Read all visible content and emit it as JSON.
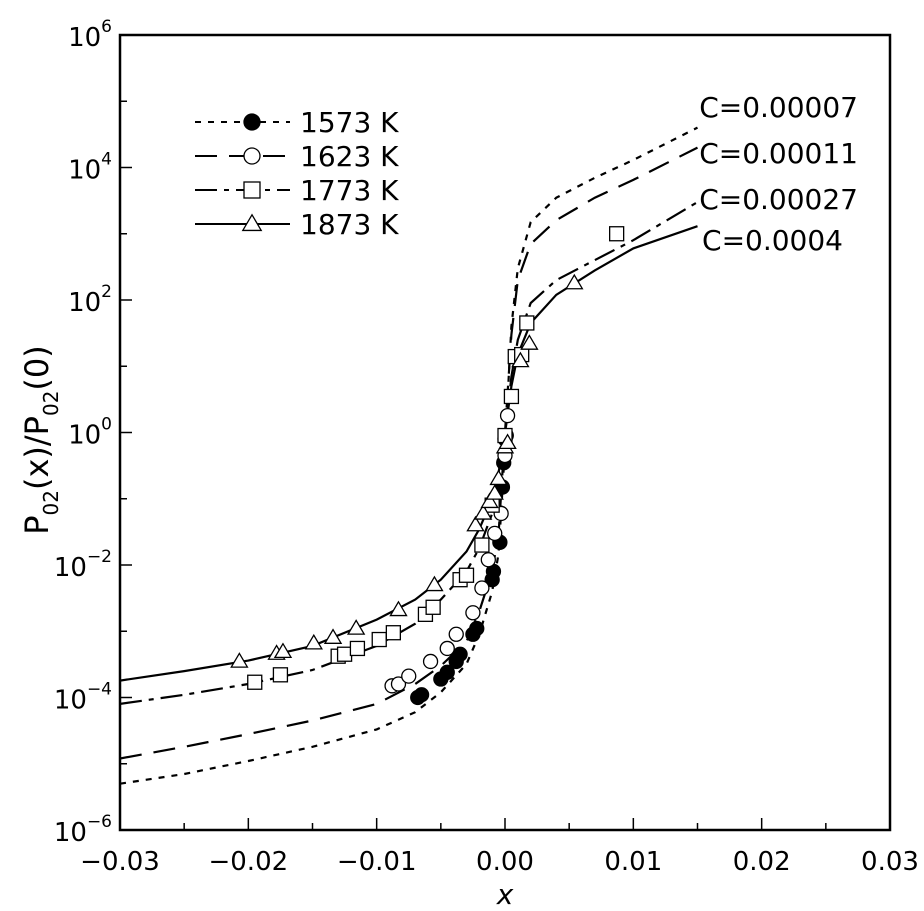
{
  "chart_data": {
    "type": "scatter",
    "xlabel": "x",
    "ylabel": {
      "base": "P",
      "sub1": "02",
      "mid": "(x)/P",
      "sub2": "02",
      "tail": "(0)"
    },
    "xlim": [
      -0.03,
      0.03
    ],
    "ylim": [
      1e-06,
      1000000.0
    ],
    "yscale": "log",
    "grid": false,
    "legend_position": "top-left",
    "x_ticks": [
      {
        "value": -0.03,
        "label": "−0.03"
      },
      {
        "value": -0.02,
        "label": "−0.02"
      },
      {
        "value": -0.01,
        "label": "−0.01"
      },
      {
        "value": 0.0,
        "label": "0.00"
      },
      {
        "value": 0.01,
        "label": "0.01"
      },
      {
        "value": 0.02,
        "label": "0.02"
      },
      {
        "value": 0.03,
        "label": "0.03"
      }
    ],
    "y_ticks": [
      {
        "exp": -6,
        "label": "10",
        "sup": "−6"
      },
      {
        "exp": -4,
        "label": "10",
        "sup": "−4"
      },
      {
        "exp": -2,
        "label": "10",
        "sup": "−2"
      },
      {
        "exp": 0,
        "label": "10",
        "sup": "0"
      },
      {
        "exp": 2,
        "label": "10",
        "sup": "2"
      },
      {
        "exp": 4,
        "label": "10",
        "sup": "4"
      },
      {
        "exp": 6,
        "label": "10",
        "sup": "6"
      }
    ],
    "series": [
      {
        "name": "1573 K",
        "marker": "filled-circle",
        "line_style": "dotted",
        "curve_label": "C=0.00007",
        "curve": [
          [
            -0.03,
            5e-06
          ],
          [
            -0.025,
            7e-06
          ],
          [
            -0.02,
            1.1e-05
          ],
          [
            -0.015,
            1.8e-05
          ],
          [
            -0.01,
            3.3e-05
          ],
          [
            -0.007,
            6e-05
          ],
          [
            -0.005,
            0.00012
          ],
          [
            -0.003,
            0.00032
          ],
          [
            -0.002,
            0.0009
          ],
          [
            -0.001,
            0.004
          ],
          [
            -0.0005,
            0.015
          ],
          [
            0.0,
            0.6
          ],
          [
            0.0005,
            40
          ],
          [
            0.001,
            300
          ],
          [
            0.002,
            1500
          ],
          [
            0.004,
            3500
          ],
          [
            0.007,
            7000
          ],
          [
            0.01,
            13000
          ],
          [
            0.015,
            40000
          ]
        ],
        "points": [
          [
            -0.0068,
            0.0001
          ],
          [
            -0.0065,
            0.00011
          ],
          [
            -0.005,
            0.00019
          ],
          [
            -0.0045,
            0.00024
          ],
          [
            -0.0038,
            0.00035
          ],
          [
            -0.0035,
            0.00045
          ],
          [
            -0.0025,
            0.0009
          ],
          [
            -0.0022,
            0.0011
          ],
          [
            -0.001,
            0.006
          ],
          [
            -0.0009,
            0.008
          ],
          [
            -0.0004,
            0.022
          ],
          [
            -0.0002,
            0.15
          ],
          [
            -0.0001,
            0.35
          ],
          [
            0.0,
            0.8
          ],
          [
            0.0001,
            0.9
          ]
        ]
      },
      {
        "name": "1623 K",
        "marker": "open-circle",
        "line_style": "dashed",
        "curve_label": "C=0.00011",
        "curve": [
          [
            -0.03,
            1.2e-05
          ],
          [
            -0.025,
            1.8e-05
          ],
          [
            -0.02,
            2.8e-05
          ],
          [
            -0.015,
            4.5e-05
          ],
          [
            -0.01,
            8e-05
          ],
          [
            -0.007,
            0.00016
          ],
          [
            -0.005,
            0.0003
          ],
          [
            -0.003,
            0.0007
          ],
          [
            -0.002,
            0.002
          ],
          [
            -0.001,
            0.008
          ],
          [
            -0.0005,
            0.03
          ],
          [
            0.0,
            1.0
          ],
          [
            0.0005,
            30
          ],
          [
            0.001,
            200
          ],
          [
            0.002,
            700
          ],
          [
            0.004,
            1600
          ],
          [
            0.007,
            3500
          ],
          [
            0.01,
            6500
          ],
          [
            0.015,
            20000
          ]
        ],
        "points": [
          [
            -0.0088,
            0.00015
          ],
          [
            -0.0083,
            0.00016
          ],
          [
            -0.0075,
            0.00021
          ],
          [
            -0.0058,
            0.00035
          ],
          [
            -0.0045,
            0.00055
          ],
          [
            -0.0038,
            0.0009
          ],
          [
            -0.0025,
            0.0019
          ],
          [
            -0.0018,
            0.0045
          ],
          [
            -0.0013,
            0.012
          ],
          [
            -0.0008,
            0.03
          ],
          [
            -0.0003,
            0.06
          ],
          [
            0.0,
            0.45
          ],
          [
            0.0002,
            1.8
          ]
        ]
      },
      {
        "name": "1773 K",
        "marker": "open-square",
        "line_style": "dash-dot",
        "curve_label": "C=0.00027",
        "curve": [
          [
            -0.03,
            8e-05
          ],
          [
            -0.025,
            0.00011
          ],
          [
            -0.02,
            0.00016
          ],
          [
            -0.015,
            0.00026
          ],
          [
            -0.01,
            0.0006
          ],
          [
            -0.007,
            0.0013
          ],
          [
            -0.005,
            0.003
          ],
          [
            -0.003,
            0.008
          ],
          [
            -0.002,
            0.018
          ],
          [
            -0.001,
            0.06
          ],
          [
            -0.0005,
            0.15
          ],
          [
            0.0,
            0.9
          ],
          [
            0.0005,
            7
          ],
          [
            0.001,
            25
          ],
          [
            0.002,
            90
          ],
          [
            0.004,
            200
          ],
          [
            0.007,
            400
          ],
          [
            0.01,
            800
          ],
          [
            0.015,
            3000
          ]
        ],
        "points": [
          [
            -0.0195,
            0.00017
          ],
          [
            -0.0175,
            0.00022
          ],
          [
            -0.013,
            0.00042
          ],
          [
            -0.0125,
            0.00045
          ],
          [
            -0.0115,
            0.00055
          ],
          [
            -0.0098,
            0.00075
          ],
          [
            -0.0087,
            0.00095
          ],
          [
            -0.0062,
            0.0018
          ],
          [
            -0.0056,
            0.0023
          ],
          [
            -0.0035,
            0.006
          ],
          [
            -0.003,
            0.007
          ],
          [
            -0.0018,
            0.02
          ],
          [
            -0.001,
            0.08
          ],
          [
            0.0,
            0.9
          ],
          [
            0.0005,
            3.5
          ],
          [
            0.0008,
            14
          ],
          [
            0.0013,
            15
          ],
          [
            0.0017,
            45
          ],
          [
            0.0087,
            1000
          ]
        ]
      },
      {
        "name": "1873 K",
        "marker": "open-triangle",
        "line_style": "solid",
        "curve_label": "C=0.0004",
        "curve": [
          [
            -0.03,
            0.00018
          ],
          [
            -0.025,
            0.00025
          ],
          [
            -0.02,
            0.00036
          ],
          [
            -0.015,
            0.0006
          ],
          [
            -0.01,
            0.0015
          ],
          [
            -0.007,
            0.003
          ],
          [
            -0.005,
            0.006
          ],
          [
            -0.003,
            0.016
          ],
          [
            -0.002,
            0.035
          ],
          [
            -0.001,
            0.1
          ],
          [
            -0.0005,
            0.25
          ],
          [
            0.0,
            1.0
          ],
          [
            0.0005,
            5
          ],
          [
            0.001,
            15
          ],
          [
            0.002,
            45
          ],
          [
            0.004,
            120
          ],
          [
            0.007,
            280
          ],
          [
            0.01,
            600
          ],
          [
            0.015,
            1300
          ]
        ],
        "points": [
          [
            -0.0207,
            0.00035
          ],
          [
            -0.0178,
            0.00046
          ],
          [
            -0.0173,
            0.00049
          ],
          [
            -0.0149,
            0.00066
          ],
          [
            -0.0134,
            0.0008
          ],
          [
            -0.0116,
            0.0011
          ],
          [
            -0.0083,
            0.0021
          ],
          [
            -0.0055,
            0.005
          ],
          [
            -0.0023,
            0.04
          ],
          [
            -0.0017,
            0.06
          ],
          [
            -0.0012,
            0.09
          ],
          [
            -0.0008,
            0.12
          ],
          [
            -0.0005,
            0.2
          ],
          [
            0.0,
            0.6
          ],
          [
            0.0002,
            0.7
          ],
          [
            0.0012,
            12
          ],
          [
            0.0019,
            22
          ],
          [
            0.0054,
            180
          ]
        ]
      }
    ]
  }
}
